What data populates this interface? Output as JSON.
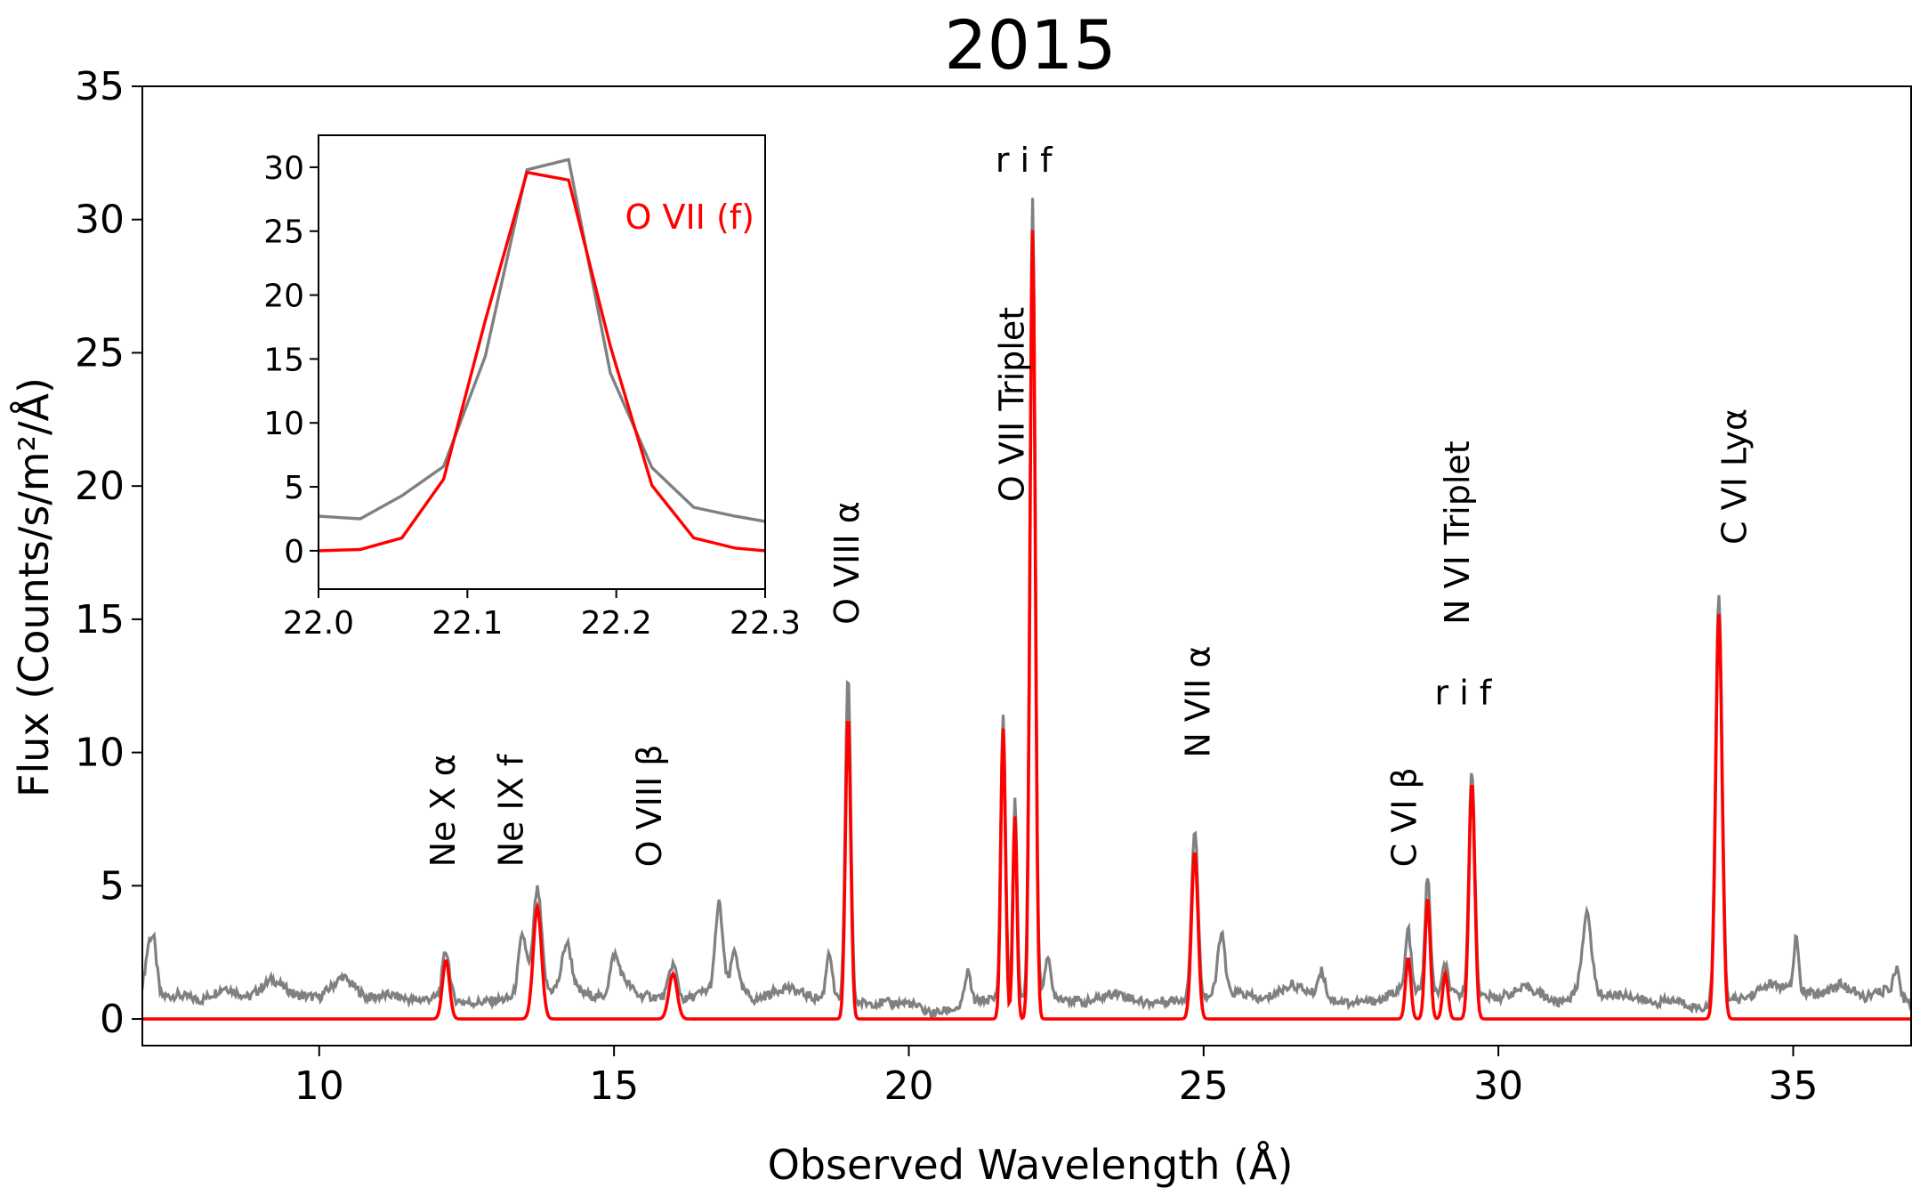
{
  "colors": {
    "observed": "#808080",
    "model": "#ff0000",
    "axis": "#000000",
    "text": "#000000"
  },
  "chart_data": [
    {
      "type": "line",
      "title": "2015",
      "xlabel": "Observed Wavelength (Å)",
      "ylabel": "Flux (Counts/s/m²/Å)",
      "xlim": [
        7.0,
        37.0
      ],
      "ylim": [
        -1.0,
        35.0
      ],
      "xticks": [
        10,
        15,
        20,
        25,
        30,
        35
      ],
      "yticks": [
        0,
        5,
        10,
        15,
        20,
        25,
        30,
        35
      ],
      "grid": false,
      "baseline": [
        {
          "x": 7.0,
          "y": 1.1
        },
        {
          "x": 7.1,
          "y": 1.8
        },
        {
          "x": 7.2,
          "y": 2.0
        },
        {
          "x": 7.3,
          "y": 0.8
        },
        {
          "x": 7.6,
          "y": 0.9
        },
        {
          "x": 8.0,
          "y": 0.7
        },
        {
          "x": 8.4,
          "y": 1.2
        },
        {
          "x": 8.8,
          "y": 0.8
        },
        {
          "x": 9.2,
          "y": 1.5
        },
        {
          "x": 9.6,
          "y": 0.9
        },
        {
          "x": 10.0,
          "y": 0.8
        },
        {
          "x": 10.4,
          "y": 1.6
        },
        {
          "x": 10.8,
          "y": 0.8
        },
        {
          "x": 11.2,
          "y": 0.9
        },
        {
          "x": 11.6,
          "y": 0.7
        },
        {
          "x": 12.0,
          "y": 0.8
        },
        {
          "x": 12.6,
          "y": 0.6
        },
        {
          "x": 13.0,
          "y": 0.7
        },
        {
          "x": 13.4,
          "y": 0.8
        },
        {
          "x": 14.0,
          "y": 1.1
        },
        {
          "x": 14.4,
          "y": 1.0
        },
        {
          "x": 14.8,
          "y": 0.8
        },
        {
          "x": 15.1,
          "y": 1.7
        },
        {
          "x": 15.4,
          "y": 0.9
        },
        {
          "x": 16.2,
          "y": 0.7
        },
        {
          "x": 16.5,
          "y": 1.0
        },
        {
          "x": 17.0,
          "y": 1.4
        },
        {
          "x": 17.4,
          "y": 0.7
        },
        {
          "x": 17.9,
          "y": 1.2
        },
        {
          "x": 18.4,
          "y": 0.8
        },
        {
          "x": 19.2,
          "y": 0.6
        },
        {
          "x": 19.6,
          "y": 0.6
        },
        {
          "x": 20.0,
          "y": 0.6
        },
        {
          "x": 20.4,
          "y": 0.2
        },
        {
          "x": 20.8,
          "y": 0.4
        },
        {
          "x": 21.2,
          "y": 0.7
        },
        {
          "x": 22.4,
          "y": 0.9
        },
        {
          "x": 23.0,
          "y": 0.6
        },
        {
          "x": 23.5,
          "y": 1.0
        },
        {
          "x": 24.0,
          "y": 0.6
        },
        {
          "x": 24.5,
          "y": 0.7
        },
        {
          "x": 25.6,
          "y": 1.0
        },
        {
          "x": 26.0,
          "y": 0.7
        },
        {
          "x": 26.5,
          "y": 1.3
        },
        {
          "x": 27.0,
          "y": 0.8
        },
        {
          "x": 27.5,
          "y": 0.6
        },
        {
          "x": 28.0,
          "y": 0.7
        },
        {
          "x": 28.3,
          "y": 1.1
        },
        {
          "x": 30.0,
          "y": 0.8
        },
        {
          "x": 30.5,
          "y": 1.2
        },
        {
          "x": 31.0,
          "y": 0.6
        },
        {
          "x": 31.3,
          "y": 0.9
        },
        {
          "x": 32.2,
          "y": 0.9
        },
        {
          "x": 32.6,
          "y": 0.6
        },
        {
          "x": 33.0,
          "y": 0.7
        },
        {
          "x": 33.4,
          "y": 0.4
        },
        {
          "x": 34.2,
          "y": 0.8
        },
        {
          "x": 34.6,
          "y": 1.3
        },
        {
          "x": 35.4,
          "y": 0.9
        },
        {
          "x": 35.8,
          "y": 1.3
        },
        {
          "x": 36.2,
          "y": 0.8
        },
        {
          "x": 36.6,
          "y": 1.1
        },
        {
          "x": 37.0,
          "y": 0.6
        }
      ],
      "series": [
        {
          "role": "observed",
          "components": [
            {
              "x": 7.15,
              "amp": 1.2,
              "sigma": 0.08
            },
            {
              "x": 12.15,
              "amp": 1.8,
              "sigma": 0.06
            },
            {
              "x": 13.45,
              "amp": 2.3,
              "sigma": 0.07
            },
            {
              "x": 13.7,
              "amp": 3.9,
              "sigma": 0.07
            },
            {
              "x": 14.2,
              "amp": 1.8,
              "sigma": 0.08
            },
            {
              "x": 15.0,
              "amp": 1.0,
              "sigma": 0.06
            },
            {
              "x": 16.0,
              "amp": 1.3,
              "sigma": 0.07
            },
            {
              "x": 16.78,
              "amp": 3.1,
              "sigma": 0.06
            },
            {
              "x": 17.05,
              "amp": 1.3,
              "sigma": 0.05
            },
            {
              "x": 18.65,
              "amp": 1.8,
              "sigma": 0.05
            },
            {
              "x": 18.97,
              "amp": 12.3,
              "sigma": 0.045
            },
            {
              "x": 21.0,
              "amp": 1.2,
              "sigma": 0.05
            },
            {
              "x": 21.6,
              "amp": 10.7,
              "sigma": 0.04
            },
            {
              "x": 21.8,
              "amp": 7.4,
              "sigma": 0.035
            },
            {
              "x": 22.1,
              "amp": 30.1,
              "sigma": 0.045
            },
            {
              "x": 22.35,
              "amp": 1.4,
              "sigma": 0.05
            },
            {
              "x": 24.85,
              "amp": 6.3,
              "sigma": 0.055
            },
            {
              "x": 25.3,
              "amp": 2.3,
              "sigma": 0.06
            },
            {
              "x": 27.0,
              "amp": 1.0,
              "sigma": 0.06
            },
            {
              "x": 28.47,
              "amp": 2.3,
              "sigma": 0.045
            },
            {
              "x": 28.8,
              "amp": 4.3,
              "sigma": 0.045
            },
            {
              "x": 29.1,
              "amp": 1.1,
              "sigma": 0.045
            },
            {
              "x": 29.55,
              "amp": 8.4,
              "sigma": 0.05
            },
            {
              "x": 31.5,
              "amp": 3.0,
              "sigma": 0.08
            },
            {
              "x": 33.74,
              "amp": 15.3,
              "sigma": 0.055
            },
            {
              "x": 35.05,
              "amp": 2.0,
              "sigma": 0.04
            },
            {
              "x": 36.75,
              "amp": 1.0,
              "sigma": 0.05
            }
          ]
        },
        {
          "role": "model",
          "components": [
            {
              "x": 12.15,
              "amp": 2.2,
              "sigma": 0.06
            },
            {
              "x": 13.7,
              "amp": 4.2,
              "sigma": 0.07
            },
            {
              "x": 16.0,
              "amp": 1.7,
              "sigma": 0.07
            },
            {
              "x": 18.97,
              "amp": 11.4,
              "sigma": 0.045
            },
            {
              "x": 21.6,
              "amp": 10.9,
              "sigma": 0.04
            },
            {
              "x": 21.8,
              "amp": 7.6,
              "sigma": 0.035
            },
            {
              "x": 22.1,
              "amp": 29.6,
              "sigma": 0.045
            },
            {
              "x": 24.85,
              "amp": 6.3,
              "sigma": 0.055
            },
            {
              "x": 28.47,
              "amp": 2.3,
              "sigma": 0.045
            },
            {
              "x": 28.8,
              "amp": 4.5,
              "sigma": 0.045
            },
            {
              "x": 29.1,
              "amp": 1.7,
              "sigma": 0.045
            },
            {
              "x": 29.55,
              "amp": 8.9,
              "sigma": 0.05
            },
            {
              "x": 33.74,
              "amp": 15.2,
              "sigma": 0.055
            }
          ]
        }
      ],
      "annotations": [
        {
          "id": "ne-x-alpha",
          "text": "Ne X α",
          "x": 12.3,
          "y": 5.7,
          "rotation": -90
        },
        {
          "id": "ne-ix-f",
          "text": "Ne IX f",
          "x": 13.45,
          "y": 5.7,
          "rotation": -90
        },
        {
          "id": "o-viii-beta",
          "text": "O VIII β",
          "x": 15.8,
          "y": 5.7,
          "rotation": -90
        },
        {
          "id": "o-viii-alpha",
          "text": "O VIII α",
          "x": 19.15,
          "y": 14.8,
          "rotation": -90
        },
        {
          "id": "o-vii-triplet",
          "text": "O VII Triplet",
          "x": 21.95,
          "y": 19.4,
          "rotation": -90
        },
        {
          "id": "o-vii-rif",
          "text": "r i f",
          "x": 21.95,
          "y": 31.8,
          "rotation": 0
        },
        {
          "id": "n-vii-alpha",
          "text": "N VII α",
          "x": 25.1,
          "y": 9.8,
          "rotation": -90
        },
        {
          "id": "c-vi-beta",
          "text": "C VI β",
          "x": 28.6,
          "y": 5.7,
          "rotation": -90
        },
        {
          "id": "n-vi-triplet",
          "text": "N VI Triplet",
          "x": 29.5,
          "y": 14.8,
          "rotation": -90
        },
        {
          "id": "n-vi-rif",
          "text": "r i f",
          "x": 29.4,
          "y": 11.8,
          "rotation": 0
        },
        {
          "id": "c-vi-lya",
          "text": "C VI Lyα",
          "x": 34.2,
          "y": 17.8,
          "rotation": -90
        }
      ]
    },
    {
      "type": "line",
      "xlim": [
        22.0,
        22.3
      ],
      "ylim": [
        -3.0,
        32.5
      ],
      "xticks": [
        22.0,
        22.1,
        22.2,
        22.3
      ],
      "xtick_labels": [
        "22.0",
        "22.1",
        "22.2",
        "22.3"
      ],
      "yticks": [
        0,
        5,
        10,
        15,
        20,
        25,
        30
      ],
      "legend_text": "O VII (f)",
      "series": [
        {
          "role": "observed",
          "x": [
            22.0,
            22.028,
            22.056,
            22.084,
            22.112,
            22.14,
            22.168,
            22.196,
            22.224,
            22.252,
            22.28,
            22.3
          ],
          "y": [
            2.7,
            2.5,
            4.3,
            6.6,
            15.2,
            29.8,
            30.6,
            13.9,
            6.5,
            3.4,
            2.7,
            2.3
          ]
        },
        {
          "role": "model",
          "x": [
            22.0,
            22.028,
            22.056,
            22.084,
            22.112,
            22.14,
            22.168,
            22.196,
            22.224,
            22.252,
            22.28,
            22.3
          ],
          "y": [
            0.0,
            0.1,
            1.0,
            5.6,
            18.0,
            29.6,
            29.0,
            16.0,
            5.1,
            1.0,
            0.2,
            0.0
          ]
        }
      ]
    }
  ]
}
